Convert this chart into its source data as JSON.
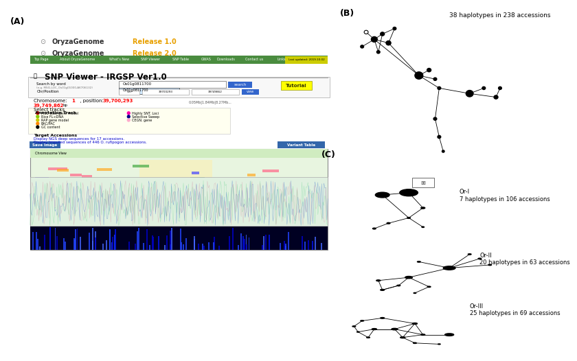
{
  "panel_A_label": "(A)",
  "panel_B_label": "(B)",
  "panel_C_label": "(C)",
  "panel_B_text": "38 haplotypes in 238 accessions",
  "panel_C_OrI_text": "Or-I\n7 haplotypes in 106 accessions",
  "panel_C_OrII_text": "Or-II\n20 haplotypes in 63 accessions",
  "panel_C_OrIII_text": "Or-III\n25 haplotypes in 69 accessions",
  "bg_color": "#ffffff",
  "node_color": "#000000",
  "line_color": "#000000",
  "web_bg": "#f0f0f0",
  "snp_title": "SNP Viewer - IRGSP Ver1.0",
  "oryzagenome_color": "#e8a000",
  "nav_bar_color": "#4a8c3f",
  "genome_release1": "Release 1.0",
  "genome_release2": "Release 2.0"
}
